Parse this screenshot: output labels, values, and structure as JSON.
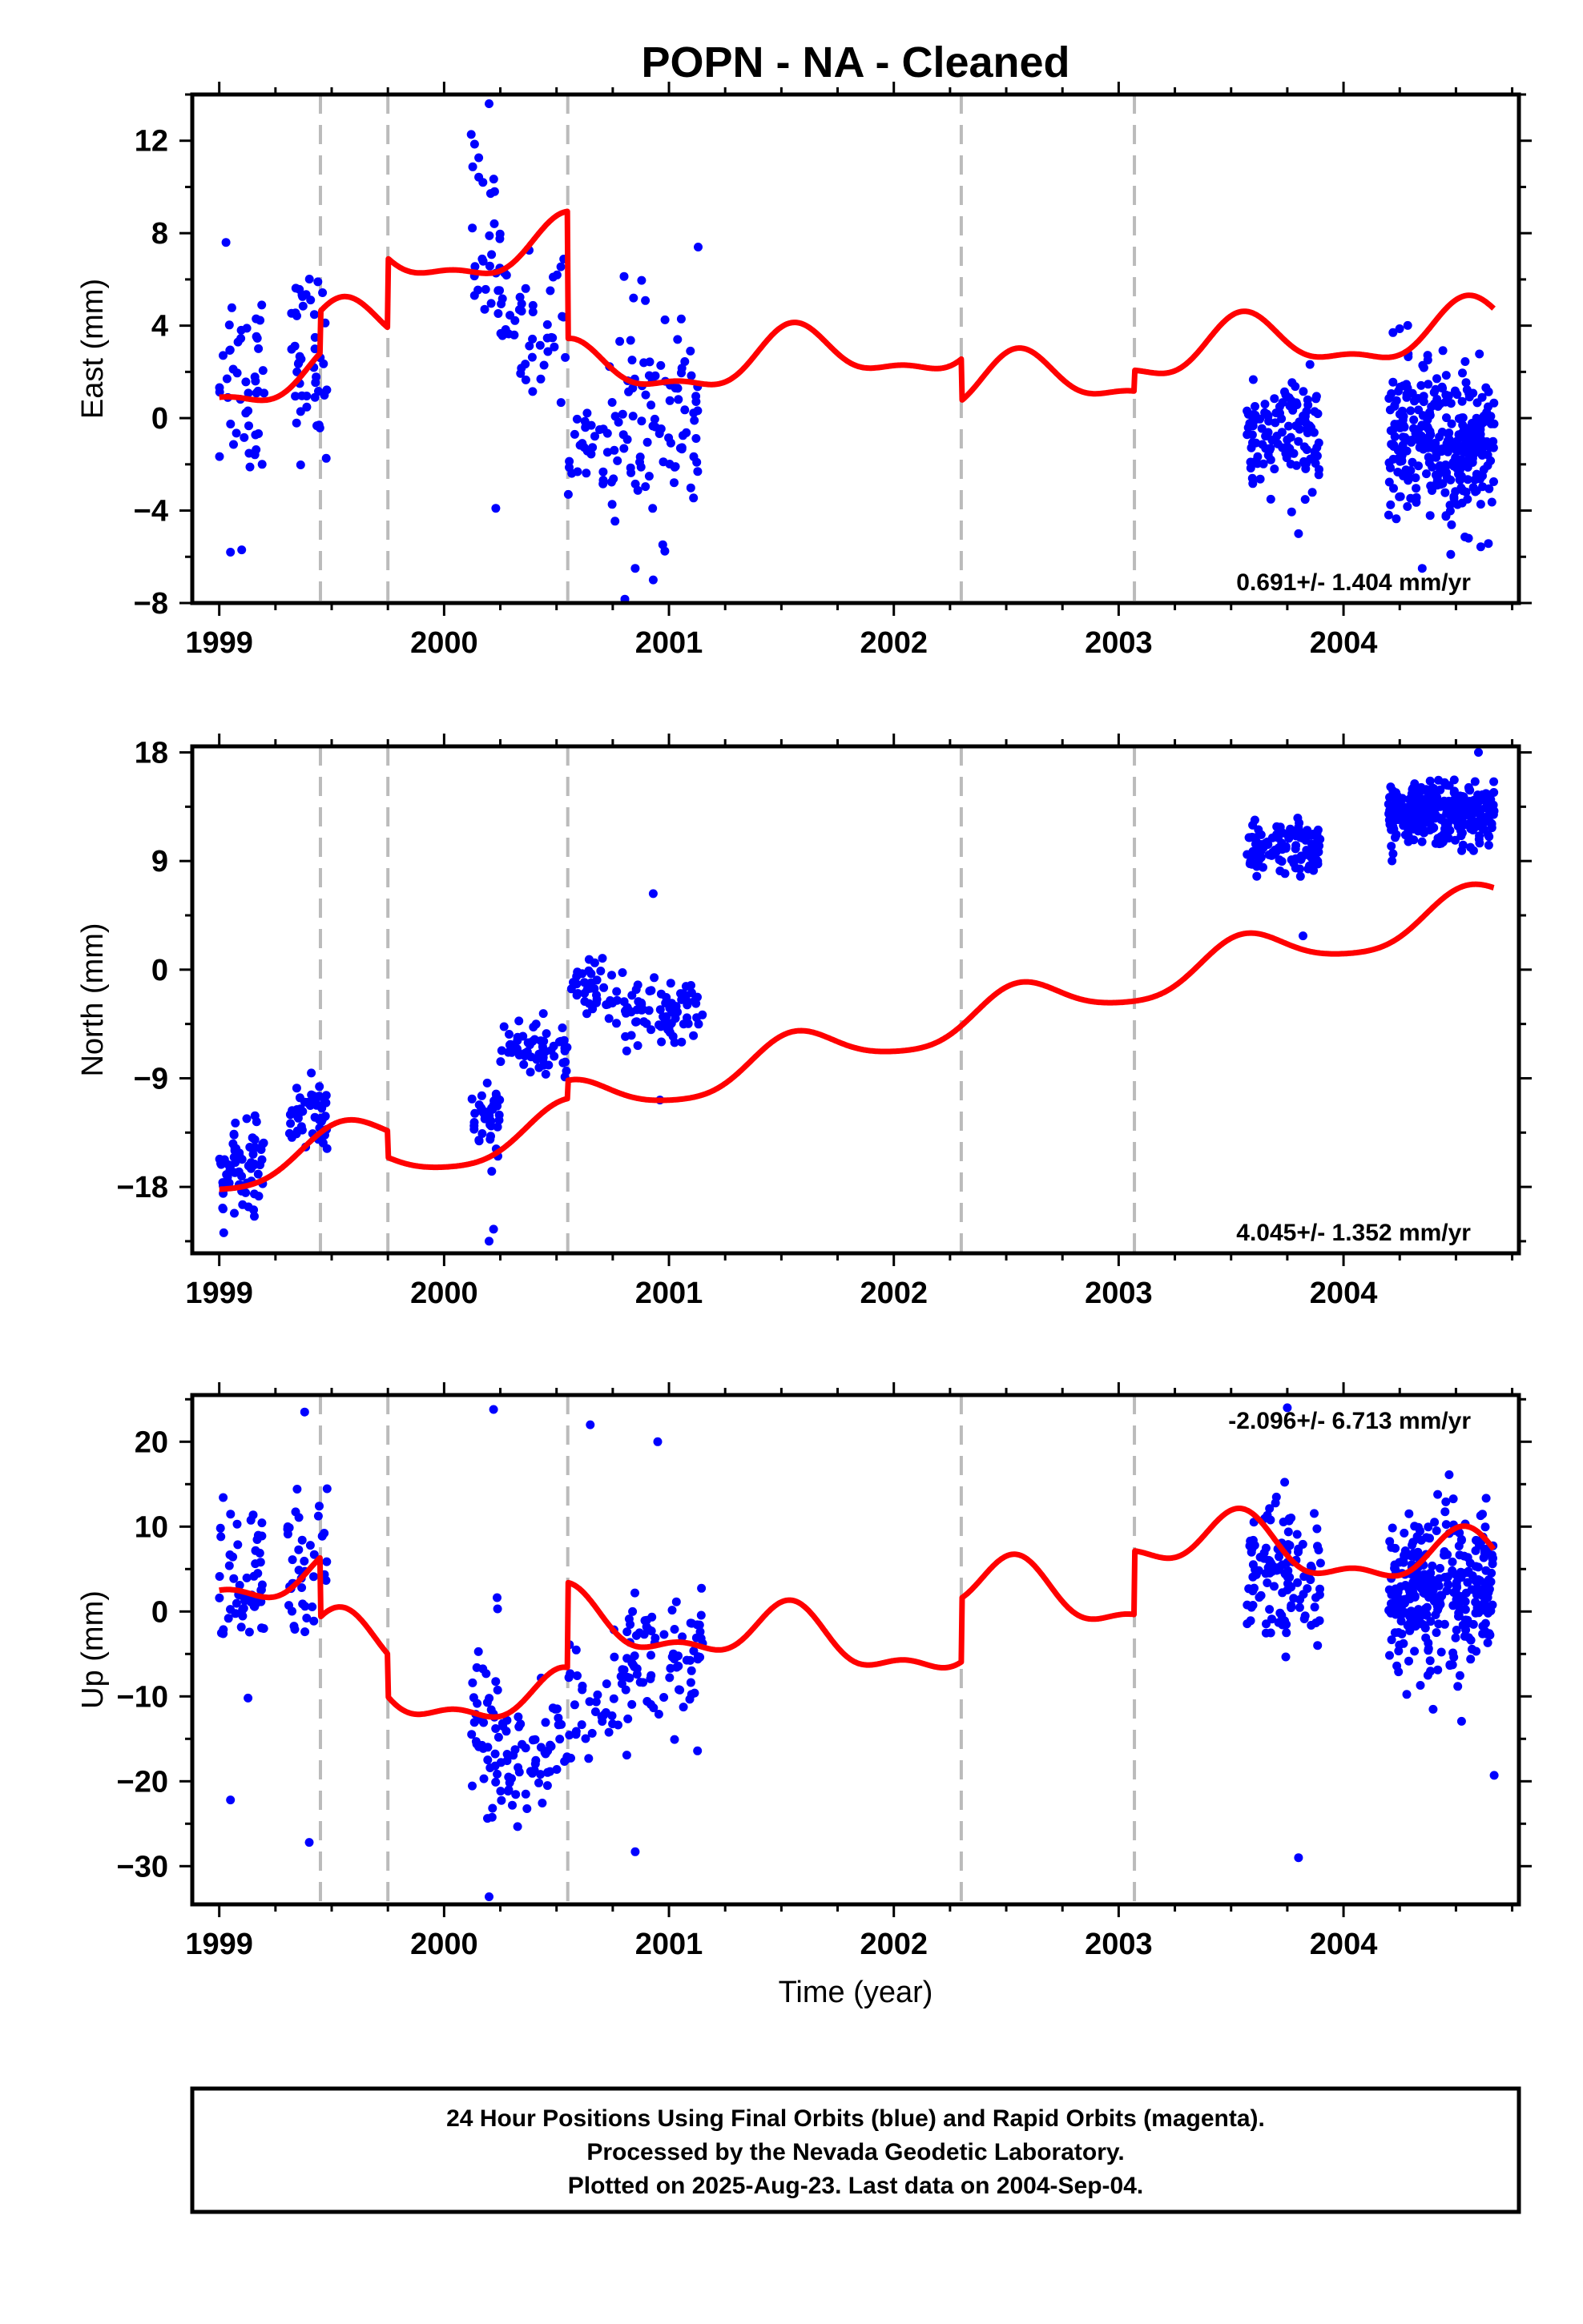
{
  "chart_data": {
    "type": "scatter",
    "title": "POPN  - NA - Cleaned",
    "xlabel": "Time (year)",
    "xlim": [
      1998.88,
      2004.78
    ],
    "x_ticks": [
      1999,
      2000,
      2001,
      2002,
      2003,
      2004
    ],
    "x_tick_labels": [
      "1999",
      "2000",
      "2001",
      "2002",
      "2003",
      "2004"
    ],
    "equipment_change_lines": [
      1999.45,
      1999.75,
      2000.55,
      2002.3,
      2003.07
    ],
    "point_color": "#0000ff",
    "model_color": "#ff0000",
    "dash_color": "#bbbbbb",
    "panels": [
      {
        "id": "east",
        "ylabel": "East (mm)",
        "ylim": [
          -8,
          14
        ],
        "y_ticks": [
          -8,
          -4,
          0,
          4,
          8,
          12
        ],
        "y_tick_labels": [
          "−8",
          "−4",
          "0",
          "4",
          "8",
          "12"
        ],
        "rate_text": "0.691+/- 1.404 mm/yr",
        "rate_position": "bottom-right",
        "clusters": [
          {
            "x0": 1999.0,
            "x1": 1999.2,
            "center": 2.0,
            "spread": 3.0,
            "n": 45
          },
          {
            "x0": 1999.3,
            "x1": 1999.48,
            "center": 2.5,
            "spread": 2.5,
            "n": 45
          },
          {
            "x0": 2000.12,
            "x1": 2000.25,
            "center": 7.5,
            "spread": 3.0,
            "n": 30
          },
          {
            "x0": 2000.25,
            "x1": 2000.55,
            "center": 4.0,
            "spread": 2.0,
            "n": 45
          },
          {
            "x0": 2000.55,
            "x1": 2000.8,
            "center": -1.0,
            "spread": 2.0,
            "n": 40
          },
          {
            "x0": 2000.8,
            "x1": 2001.15,
            "center": 0.0,
            "spread": 3.0,
            "n": 80
          },
          {
            "x0": 2003.57,
            "x1": 2003.9,
            "center": -0.8,
            "spread": 1.5,
            "n": 120
          },
          {
            "x0": 2004.2,
            "x1": 2004.67,
            "center": -1.2,
            "spread": 2.2,
            "n": 320
          }
        ],
        "outliers": [
          [
            1999.05,
            -5.8
          ],
          [
            1999.1,
            -5.7
          ],
          [
            1999.03,
            7.6
          ],
          [
            2000.2,
            13.6
          ],
          [
            2000.23,
            -3.9
          ],
          [
            2000.85,
            -6.5
          ],
          [
            2000.93,
            -7.0
          ],
          [
            2001.13,
            7.4
          ],
          [
            2003.8,
            -5.0
          ],
          [
            2004.22,
            3.7
          ],
          [
            2004.35,
            -6.5
          ]
        ],
        "model": {
          "rate": 0.691,
          "ann_amp": 1.1,
          "ann_phase": 4.3,
          "semi_amp": 0.45,
          "semi_phase": 1.0,
          "offsets": [
            1.8,
            3.0,
            -5.5,
            -1.8,
            0.9
          ],
          "y0": 0.9
        }
      },
      {
        "id": "north",
        "ylabel": "North (mm)",
        "ylim": [
          -23.5,
          18.5
        ],
        "y_ticks": [
          -18,
          -9,
          0,
          9,
          18
        ],
        "y_tick_labels": [
          "−18",
          "−9",
          "0",
          "9",
          "18"
        ],
        "rate_text": "4.045+/- 1.352 mm/yr",
        "rate_position": "bottom-right",
        "clusters": [
          {
            "x0": 1999.0,
            "x1": 1999.2,
            "center": -16.5,
            "spread": 2.5,
            "n": 70
          },
          {
            "x0": 1999.3,
            "x1": 1999.48,
            "center": -12.0,
            "spread": 1.8,
            "n": 50
          },
          {
            "x0": 2000.12,
            "x1": 2000.25,
            "center": -12.0,
            "spread": 2.2,
            "n": 40
          },
          {
            "x0": 2000.25,
            "x1": 2000.55,
            "center": -6.5,
            "spread": 1.6,
            "n": 60
          },
          {
            "x0": 2000.55,
            "x1": 2000.8,
            "center": -1.5,
            "spread": 1.5,
            "n": 40
          },
          {
            "x0": 2000.8,
            "x1": 2001.15,
            "center": -4.0,
            "spread": 2.0,
            "n": 80
          },
          {
            "x0": 2003.57,
            "x1": 2003.9,
            "center": 10.0,
            "spread": 1.5,
            "n": 120
          },
          {
            "x0": 2004.2,
            "x1": 2004.67,
            "center": 13.0,
            "spread": 1.6,
            "n": 320
          }
        ],
        "outliers": [
          [
            1999.02,
            -21.8
          ],
          [
            2000.2,
            -22.5
          ],
          [
            2000.22,
            -21.5
          ],
          [
            2000.93,
            6.3
          ],
          [
            2003.82,
            2.8
          ],
          [
            2000.96,
            -10.8
          ],
          [
            2004.6,
            18.0
          ]
        ],
        "model": {
          "rate": 4.045,
          "ann_amp": 1.8,
          "ann_phase": 4.3,
          "semi_amp": 0.3,
          "semi_phase": 1.2,
          "offsets": [
            0.0,
            -2.2,
            1.5,
            0.0,
            0.0
          ],
          "y0": -18.2
        }
      },
      {
        "id": "up",
        "ylabel": "Up (mm)",
        "ylim": [
          -34.5,
          25.5
        ],
        "y_ticks": [
          -30,
          -20,
          -10,
          0,
          10,
          20
        ],
        "y_tick_labels": [
          "−30",
          "−20",
          "−10",
          "0",
          "10",
          "20"
        ],
        "rate_text": "-2.096+/- 6.713 mm/yr",
        "rate_position": "top-right",
        "clusters": [
          {
            "x0": 1999.0,
            "x1": 1999.2,
            "center": 3.0,
            "spread": 6.0,
            "n": 55
          },
          {
            "x0": 1999.3,
            "x1": 1999.48,
            "center": 4.0,
            "spread": 7.0,
            "n": 40
          },
          {
            "x0": 2000.12,
            "x1": 2000.25,
            "center": -12.0,
            "spread": 7.0,
            "n": 40
          },
          {
            "x0": 2000.25,
            "x1": 2000.55,
            "center": -17.0,
            "spread": 4.5,
            "n": 60
          },
          {
            "x0": 2000.55,
            "x1": 2000.8,
            "center": -12.0,
            "spread": 6.0,
            "n": 35
          },
          {
            "x0": 2000.8,
            "x1": 2001.15,
            "center": -6.0,
            "spread": 6.0,
            "n": 80
          },
          {
            "x0": 2003.57,
            "x1": 2003.9,
            "center": 4.0,
            "spread": 6.0,
            "n": 120
          },
          {
            "x0": 2004.2,
            "x1": 2004.67,
            "center": 2.0,
            "spread": 6.0,
            "n": 320
          }
        ],
        "outliers": [
          [
            1999.05,
            -22.2
          ],
          [
            1999.38,
            23.5
          ],
          [
            1999.4,
            -27.2
          ],
          [
            2000.2,
            -33.6
          ],
          [
            2000.22,
            23.8
          ],
          [
            2000.65,
            22.0
          ],
          [
            2000.95,
            20.0
          ],
          [
            2003.8,
            -29.0
          ],
          [
            2004.67,
            -19.3
          ],
          [
            2003.75,
            24.0
          ],
          [
            2000.85,
            -28.3
          ]
        ],
        "model": {
          "rate": -2.096,
          "ann_amp": 3.0,
          "ann_phase": 4.5,
          "semi_amp": 1.5,
          "semi_phase": 1.0,
          "offsets": [
            -7.0,
            -5.0,
            10.0,
            7.5,
            7.5
          ],
          "y0": 2.5
        }
      }
    ]
  },
  "footer": {
    "line1": "24 Hour Positions Using Final Orbits (blue) and Rapid Orbits (magenta).",
    "line2": "Processed by the Nevada Geodetic Laboratory.",
    "line3": "Plotted on 2025-Aug-23. Last data on 2004-Sep-04."
  }
}
